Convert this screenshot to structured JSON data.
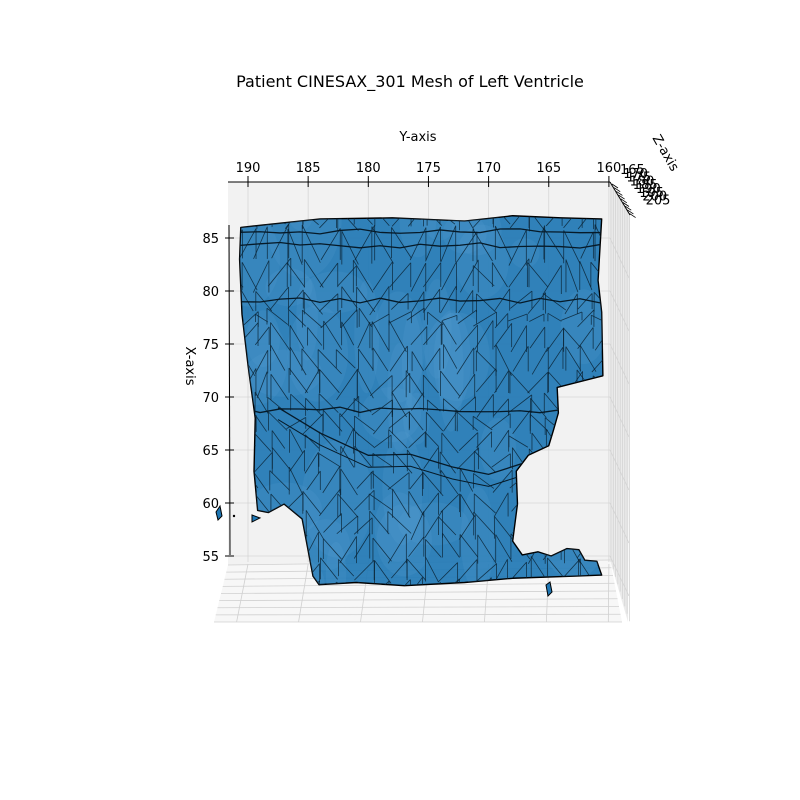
{
  "chart_data": {
    "type": "3d-mesh",
    "title": "Patient CINESAX_301 Mesh of Left Ventricle",
    "axes": {
      "y": {
        "label": "Y-axis",
        "ticks": [
          190,
          185,
          180,
          175,
          170,
          165,
          160
        ],
        "range": [
          191.7,
          160
        ]
      },
      "x": {
        "label": "X-axis",
        "ticks": [
          85,
          80,
          75,
          70,
          65,
          60,
          55
        ],
        "range": [
          54,
          87
        ]
      },
      "z": {
        "label": "Z-axis",
        "ticks": [
          165,
          170,
          175,
          180,
          185,
          190,
          195,
          200,
          205
        ]
      }
    },
    "grid": true,
    "series": [
      {
        "mesh_color": "#1f77b4",
        "edge_color": "#000000",
        "outline": [
          [
            190.6,
            86.0
          ],
          [
            184,
            86.8
          ],
          [
            178,
            86.9
          ],
          [
            172,
            86.6
          ],
          [
            168,
            87.1
          ],
          [
            164,
            86.9
          ],
          [
            160.6,
            86.8
          ],
          [
            160.9,
            81.0
          ],
          [
            160.6,
            78.0
          ],
          [
            160.5,
            72.0
          ],
          [
            164.3,
            70.9
          ],
          [
            164.2,
            68.5
          ],
          [
            164.6,
            66.9
          ],
          [
            165.0,
            65.4
          ],
          [
            166.7,
            64.5
          ],
          [
            167.7,
            63.0
          ],
          [
            167.6,
            59.9
          ],
          [
            168.0,
            56.4
          ],
          [
            167.2,
            55.1
          ],
          [
            165.9,
            55.4
          ],
          [
            164.8,
            55.0
          ],
          [
            163.5,
            55.7
          ],
          [
            162.5,
            55.6
          ],
          [
            162.0,
            54.6
          ],
          [
            161.0,
            54.5
          ],
          [
            160.6,
            53.2
          ],
          [
            163.0,
            53.1
          ],
          [
            168.0,
            52.9
          ],
          [
            172.0,
            52.5
          ],
          [
            177.0,
            52.2
          ],
          [
            181.0,
            52.5
          ],
          [
            184.1,
            52.3
          ],
          [
            184.6,
            53.1
          ],
          [
            185.0,
            55.5
          ],
          [
            185.5,
            58.5
          ],
          [
            187.0,
            59.9
          ],
          [
            188.3,
            59.1
          ],
          [
            189.2,
            59.3
          ],
          [
            189.5,
            63.0
          ],
          [
            189.4,
            68.0
          ],
          [
            190.0,
            73.0
          ],
          [
            190.5,
            77.8
          ],
          [
            190.7,
            83.0
          ]
        ],
        "rings_x": [
          85.6,
          84.3,
          79.1,
          68.8
        ],
        "lower_ring": [
          [
            187.5,
            69.0
          ],
          [
            184,
            66.6
          ],
          [
            180,
            64.5
          ],
          [
            176.5,
            64.6
          ],
          [
            173,
            63.4
          ],
          [
            170,
            62.7
          ],
          [
            167,
            63.8
          ],
          [
            165,
            63.2
          ]
        ]
      }
    ]
  }
}
